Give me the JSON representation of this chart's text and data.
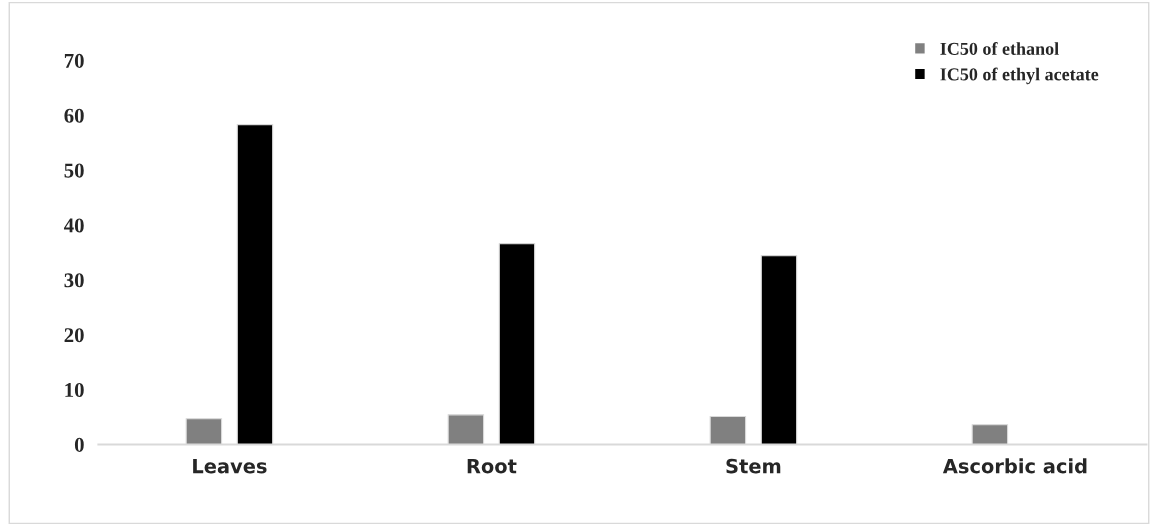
{
  "chart_data": {
    "type": "bar",
    "categories": [
      "Leaves",
      "Root",
      "Stem",
      "Ascorbic acid"
    ],
    "series": [
      {
        "name": "IC50 of ethanol",
        "color": "#808080",
        "values": [
          4.7,
          5.4,
          5.1,
          3.6
        ]
      },
      {
        "name": "IC50 of ethyl acetate",
        "color": "#000000",
        "values": [
          58.3,
          36.6,
          34.4,
          null
        ]
      }
    ],
    "ylim": [
      0,
      70
    ],
    "yticks": [
      0,
      10,
      20,
      30,
      40,
      50,
      60,
      70
    ],
    "grid": false,
    "legend": "top right"
  }
}
